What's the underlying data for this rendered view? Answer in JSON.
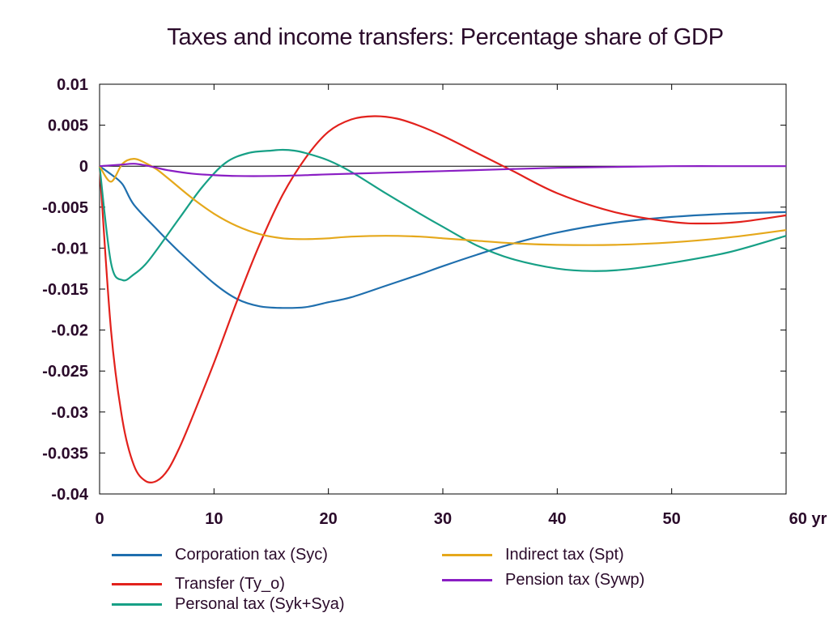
{
  "chart_data": {
    "type": "line",
    "title": "Taxes and income transfers: Percentage share of GDP",
    "xlabel": "",
    "ylabel": "",
    "xlim": [
      0,
      60
    ],
    "ylim": [
      -0.04,
      0.01
    ],
    "x_ticks": [
      0,
      10,
      20,
      30,
      40,
      50,
      60
    ],
    "x_tick_labels": [
      "0",
      "10",
      "20",
      "30",
      "40",
      "50",
      "60 yr"
    ],
    "y_ticks": [
      0.01,
      0.005,
      0,
      -0.005,
      -0.01,
      -0.015,
      -0.02,
      -0.025,
      -0.03,
      -0.035,
      -0.04
    ],
    "y_tick_labels": [
      "0.01",
      "0.005",
      "0",
      "-0.005",
      "-0.01",
      "-0.015",
      "-0.02",
      "-0.025",
      "-0.03",
      "-0.035",
      "-0.04"
    ],
    "grid": false,
    "zero_line": true,
    "legend_position": "bottom",
    "series": [
      {
        "name": "Corporation tax (Syc)",
        "color": "#1f6fae",
        "x": [
          0,
          1,
          2,
          3,
          5,
          7,
          10,
          12,
          14,
          16,
          18,
          20,
          22,
          25,
          28,
          30,
          33,
          36,
          40,
          45,
          50,
          55,
          60
        ],
        "y": [
          0,
          -0.001,
          -0.0022,
          -0.0047,
          -0.0077,
          -0.0105,
          -0.0143,
          -0.0162,
          -0.0171,
          -0.0173,
          -0.0172,
          -0.0166,
          -0.016,
          -0.0146,
          -0.0132,
          -0.0122,
          -0.0108,
          -0.0095,
          -0.0081,
          -0.0069,
          -0.0062,
          -0.0058,
          -0.0056
        ]
      },
      {
        "name": "Transfer (Ty_o)",
        "color": "#e2211c",
        "x": [
          0,
          1,
          2,
          3,
          4,
          5,
          6,
          7,
          8,
          10,
          12,
          14,
          16,
          18,
          20,
          22,
          24,
          26,
          28,
          30,
          33,
          36,
          40,
          45,
          50,
          53,
          56,
          60
        ],
        "y": [
          0,
          -0.02,
          -0.031,
          -0.0365,
          -0.0384,
          -0.0384,
          -0.037,
          -0.0343,
          -0.031,
          -0.024,
          -0.0165,
          -0.0095,
          -0.0035,
          0.001,
          0.0042,
          0.0057,
          0.0061,
          0.0058,
          0.0049,
          0.0037,
          0.0016,
          -0.0005,
          -0.0033,
          -0.0056,
          -0.0068,
          -0.007,
          -0.0068,
          -0.006
        ]
      },
      {
        "name": "Personal tax (Syk+Sya)",
        "color": "#17a086",
        "x": [
          0,
          1,
          2,
          3,
          4,
          5,
          7,
          9,
          11,
          13,
          15,
          16,
          17,
          18,
          20,
          22,
          25,
          28,
          30,
          33,
          36,
          40,
          43,
          46,
          50,
          55,
          60
        ],
        "y": [
          0,
          -0.0118,
          -0.0139,
          -0.0132,
          -0.012,
          -0.0102,
          -0.0063,
          -0.0025,
          0.0004,
          0.0016,
          0.0019,
          0.002,
          0.0019,
          0.0016,
          0.0007,
          -0.0007,
          -0.0033,
          -0.0058,
          -0.0074,
          -0.0097,
          -0.0113,
          -0.0125,
          -0.0128,
          -0.0126,
          -0.0118,
          -0.0105,
          -0.0085
        ]
      },
      {
        "name": "Indirect tax (Spt)",
        "color": "#e5a81b",
        "x": [
          0,
          1,
          2,
          3,
          4,
          5,
          6,
          8,
          10,
          12,
          14,
          16,
          18,
          20,
          22,
          25,
          28,
          30,
          33,
          36,
          40,
          45,
          50,
          55,
          60
        ],
        "y": [
          0,
          -0.0019,
          0.0003,
          0.0009,
          0.0004,
          -0.0004,
          -0.0015,
          -0.0038,
          -0.0058,
          -0.0073,
          -0.0083,
          -0.0088,
          -0.0089,
          -0.0088,
          -0.0086,
          -0.0085,
          -0.0086,
          -0.0088,
          -0.0091,
          -0.0094,
          -0.0096,
          -0.0096,
          -0.0093,
          -0.0087,
          -0.0078
        ]
      },
      {
        "name": "Pension tax (Sywp)",
        "color": "#8a1ec4",
        "x": [
          0,
          1,
          2,
          3,
          4,
          5,
          6,
          8,
          10,
          12,
          15,
          18,
          20,
          25,
          30,
          35,
          40,
          45,
          50,
          55,
          60
        ],
        "y": [
          0,
          0.0001,
          0.0002,
          0.0003,
          0.0001,
          -0.0002,
          -0.0005,
          -0.0009,
          -0.0011,
          -0.0012,
          -0.0012,
          -0.0011,
          -0.001,
          -0.0008,
          -0.0006,
          -0.0004,
          -0.0002,
          -0.0001,
          0,
          0,
          0
        ]
      }
    ]
  },
  "legend": [
    {
      "label": "Corporation tax (Syc)",
      "color": "#1f6fae"
    },
    {
      "label": "Transfer (Ty_o)",
      "color": "#e2211c"
    },
    {
      "label": "Personal tax (Syk+Sya)",
      "color": "#17a086"
    },
    {
      "label": "Indirect tax (Spt)",
      "color": "#e5a81b"
    },
    {
      "label": "Pension tax (Sywp)",
      "color": "#8a1ec4"
    }
  ]
}
